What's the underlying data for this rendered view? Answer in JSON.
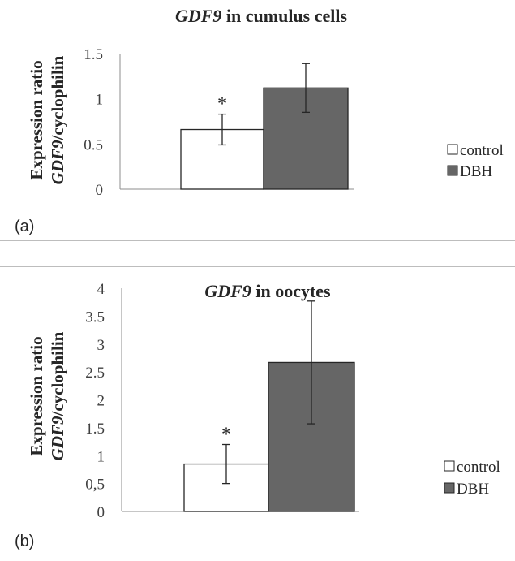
{
  "chart_data": [
    {
      "type": "bar",
      "panel_label": "(a)",
      "title": {
        "gene": "GDF9",
        "rest": " in cumulus cells"
      },
      "ylabel": {
        "line1": "Expression ratio",
        "line2_gene": "GDF9",
        "line2_rest": "/cyclophilin"
      },
      "ylim": [
        0,
        1.5
      ],
      "yticks": [
        {
          "value": 0,
          "label": "0"
        },
        {
          "value": 0.5,
          "label": "0.5"
        },
        {
          "value": 1,
          "label": "1"
        },
        {
          "value": 1.5,
          "label": "1.5"
        }
      ],
      "grid": false,
      "legend_position": "right",
      "series": [
        {
          "name": "control",
          "value": 0.66,
          "error": 0.17,
          "significance": "*",
          "color": "#ffffff"
        },
        {
          "name": "DBH",
          "value": 1.12,
          "error": 0.27,
          "significance": "",
          "color": "#666666"
        }
      ]
    },
    {
      "type": "bar",
      "panel_label": "(b)",
      "title": {
        "gene": "GDF9",
        "rest": " in oocytes"
      },
      "ylabel": {
        "line1": "Expression ratio",
        "line2_gene": "GDF9",
        "line2_rest": "/cyclophilin"
      },
      "ylim": [
        0,
        4
      ],
      "yticks": [
        {
          "value": 0,
          "label": "0"
        },
        {
          "value": 0.5,
          "label": "0,5"
        },
        {
          "value": 1,
          "label": "1"
        },
        {
          "value": 1.5,
          "label": "1.5"
        },
        {
          "value": 2,
          "label": "2"
        },
        {
          "value": 2.5,
          "label": "2.5"
        },
        {
          "value": 3,
          "label": "3"
        },
        {
          "value": 3.5,
          "label": "3.5"
        },
        {
          "value": 4,
          "label": "4"
        }
      ],
      "grid": false,
      "legend_position": "right",
      "series": [
        {
          "name": "control",
          "value": 0.85,
          "error": 0.35,
          "significance": "*",
          "color": "#ffffff"
        },
        {
          "name": "DBH",
          "value": 2.67,
          "error": 1.1,
          "significance": "",
          "color": "#666666"
        }
      ]
    }
  ]
}
